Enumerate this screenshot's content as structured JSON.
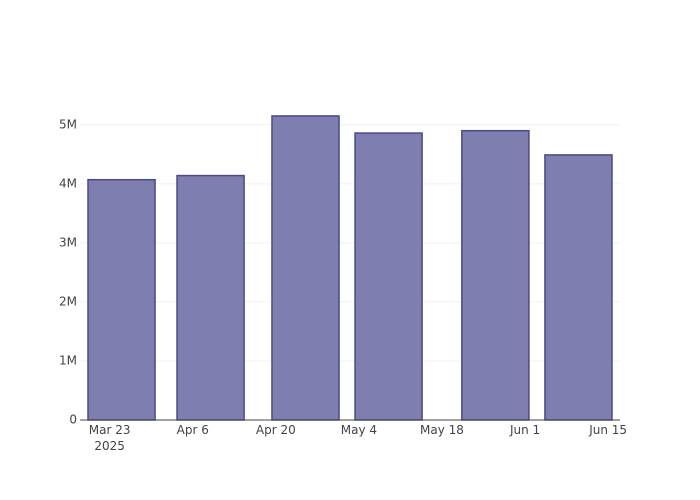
{
  "chart_data": {
    "type": "bar",
    "x": [
      "2025-03-25",
      "2025-04-09",
      "2025-04-25",
      "2025-05-09",
      "2025-05-27",
      "2025-06-10"
    ],
    "values": [
      4070000,
      4140000,
      5150000,
      4860000,
      4900000,
      4490000
    ],
    "color": "#7f7eb0",
    "xlim": [
      "2025-03-18",
      "2025-06-17"
    ],
    "xticks": [
      {
        "value": "2025-03-23",
        "label": "Mar 23\n2025"
      },
      {
        "value": "2025-04-06",
        "label": "Apr 6"
      },
      {
        "value": "2025-04-20",
        "label": "Apr 20"
      },
      {
        "value": "2025-05-04",
        "label": "May 4"
      },
      {
        "value": "2025-05-18",
        "label": "May 18"
      },
      {
        "value": "2025-06-01",
        "label": "Jun 1"
      },
      {
        "value": "2025-06-15",
        "label": "Jun 15"
      }
    ],
    "ylim": [
      0,
      5420000
    ],
    "yticks": [
      0,
      {
        "value": 1000000,
        "label": "1M"
      },
      {
        "value": 2000000,
        "label": "2M"
      },
      {
        "value": 3000000,
        "label": "3M"
      },
      {
        "value": 4000000,
        "label": "4M"
      },
      {
        "value": 5000000,
        "label": "5M"
      }
    ],
    "grid": true
  }
}
